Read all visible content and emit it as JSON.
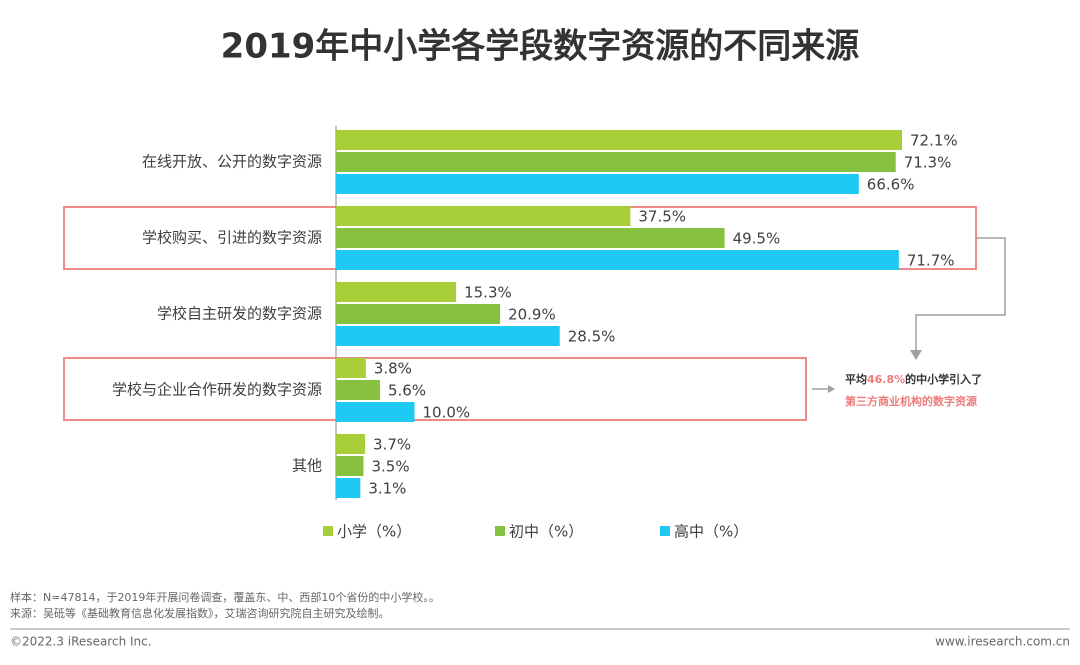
{
  "chart_data": {
    "type": "hbar",
    "title": "2019年中小学各学段数字资源的不同来源",
    "categories": [
      "在线开放、公开的数字资源",
      "学校购买、引进的数字资源",
      "学校自主研发的数字资源",
      "学校与企业合作研发的数字资源",
      "其他"
    ],
    "series": [
      {
        "name": "小学（%）",
        "color": "#a8cf38",
        "values": [
          72.1,
          37.5,
          15.3,
          3.8,
          3.7
        ],
        "value_labels": [
          "72.1%",
          "37.5%",
          "15.3%",
          "3.8%",
          "3.7%"
        ]
      },
      {
        "name": "初中（%）",
        "color": "#86c03f",
        "values": [
          71.3,
          49.5,
          20.9,
          5.6,
          3.5
        ],
        "value_labels": [
          "71.3%",
          "49.5%",
          "20.9%",
          "5.6%",
          "3.5%"
        ]
      },
      {
        "name": "高中（%）",
        "color": "#1ec9f2",
        "values": [
          66.6,
          71.7,
          28.5,
          10.0,
          3.1
        ],
        "value_labels": [
          "66.6%",
          "71.7%",
          "28.5%",
          "10.0%",
          "3.1%"
        ]
      }
    ],
    "xlim": [
      0,
      80
    ],
    "annotation": {
      "prefix": "平均",
      "highlight": "46.8%",
      "suffix": "的中小学引入了",
      "line2": "第三方商业机构的数字资源"
    }
  },
  "footer": {
    "sample": "样本：N=47814，于2019年开展问卷调查，覆盖东、中、西部10个省份的中小学校。。",
    "source": "来源：吴砥等《基础教育信息化发展指数》，艾瑞咨询研究院自主研究及绘制。",
    "copyright": "©2022.3 iResearch Inc.",
    "website": "www.iresearch.com.cn"
  }
}
